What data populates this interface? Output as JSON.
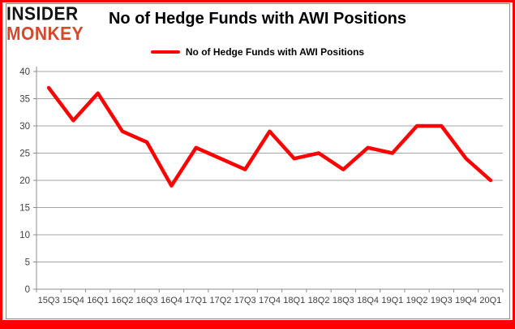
{
  "branding": {
    "logo_line1": "INSIDER",
    "logo_line2": "MONKEY"
  },
  "title": "No of Hedge Funds with AWI Positions",
  "legend": {
    "label": "No of Hedge Funds with AWI Positions"
  },
  "colors": {
    "frame_border": "#fe0000",
    "chart_border": "#8c8c8c",
    "grid": "#a6a6a6",
    "axis": "#8c8c8c",
    "tick_text": "#3f3f3f",
    "series": "#ff0000",
    "logo_primary": "#151312",
    "logo_accent": "#d04a2b"
  },
  "chart_data": {
    "type": "line",
    "title": "No of Hedge Funds with AWI Positions",
    "categories": [
      "15Q3",
      "15Q4",
      "16Q1",
      "16Q2",
      "16Q3",
      "16Q4",
      "17Q1",
      "17Q2",
      "17Q3",
      "17Q4",
      "18Q1",
      "18Q2",
      "18Q3",
      "18Q4",
      "19Q1",
      "19Q2",
      "19Q3",
      "19Q4",
      "20Q1"
    ],
    "series": [
      {
        "name": "No of Hedge Funds with AWI Positions",
        "color": "#ff0000",
        "values": [
          37,
          31,
          36,
          29,
          27,
          19,
          26,
          24,
          22,
          29,
          24,
          25,
          22,
          26,
          25,
          30,
          30,
          24,
          20
        ]
      }
    ],
    "xlabel": "",
    "ylabel": "",
    "ylim": [
      0,
      40
    ],
    "ytick_step": 5,
    "yticks": [
      0,
      5,
      10,
      15,
      20,
      25,
      30,
      35,
      40
    ],
    "grid": true,
    "legend_position": "top"
  }
}
